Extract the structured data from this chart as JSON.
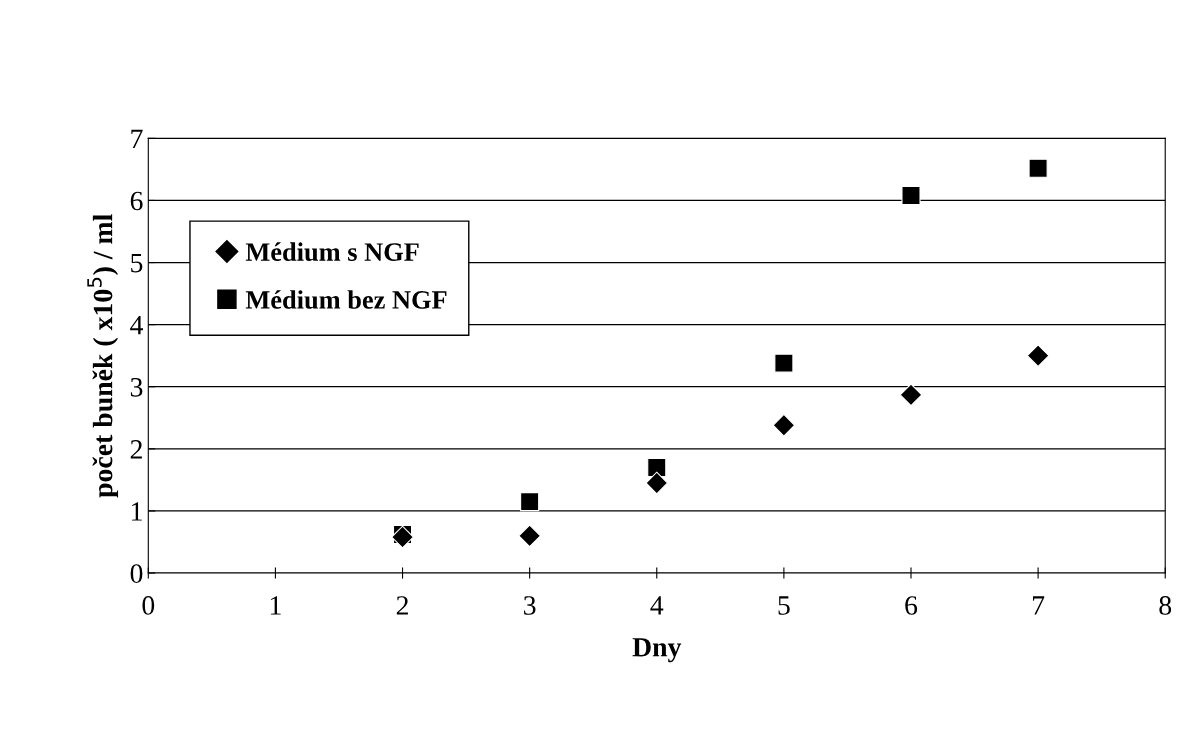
{
  "chart_data": {
    "type": "scatter",
    "xlabel": "Dny",
    "ylabel": "počet buněk ( x10$^{5}$) / ml",
    "x": [
      2,
      3,
      4,
      5,
      6,
      7
    ],
    "series": [
      {
        "name": "Médium s NGF",
        "color": "#000000",
        "marker": "diamond",
        "values": [
          0.58,
          0.6,
          1.45,
          2.38,
          2.87,
          3.5
        ]
      },
      {
        "name": "Médium bez NGF",
        "color": "#000000",
        "marker": "square",
        "values": [
          0.62,
          1.15,
          1.7,
          3.38,
          6.08,
          6.52
        ]
      }
    ],
    "xlim": [
      0,
      8
    ],
    "xticks": [
      0,
      1,
      2,
      3,
      4,
      5,
      6,
      7,
      8
    ],
    "ylim": [
      0,
      7
    ],
    "yticks": [
      0,
      1,
      2,
      3,
      4,
      5,
      6,
      7
    ],
    "grid": "y",
    "legend": "top left"
  }
}
